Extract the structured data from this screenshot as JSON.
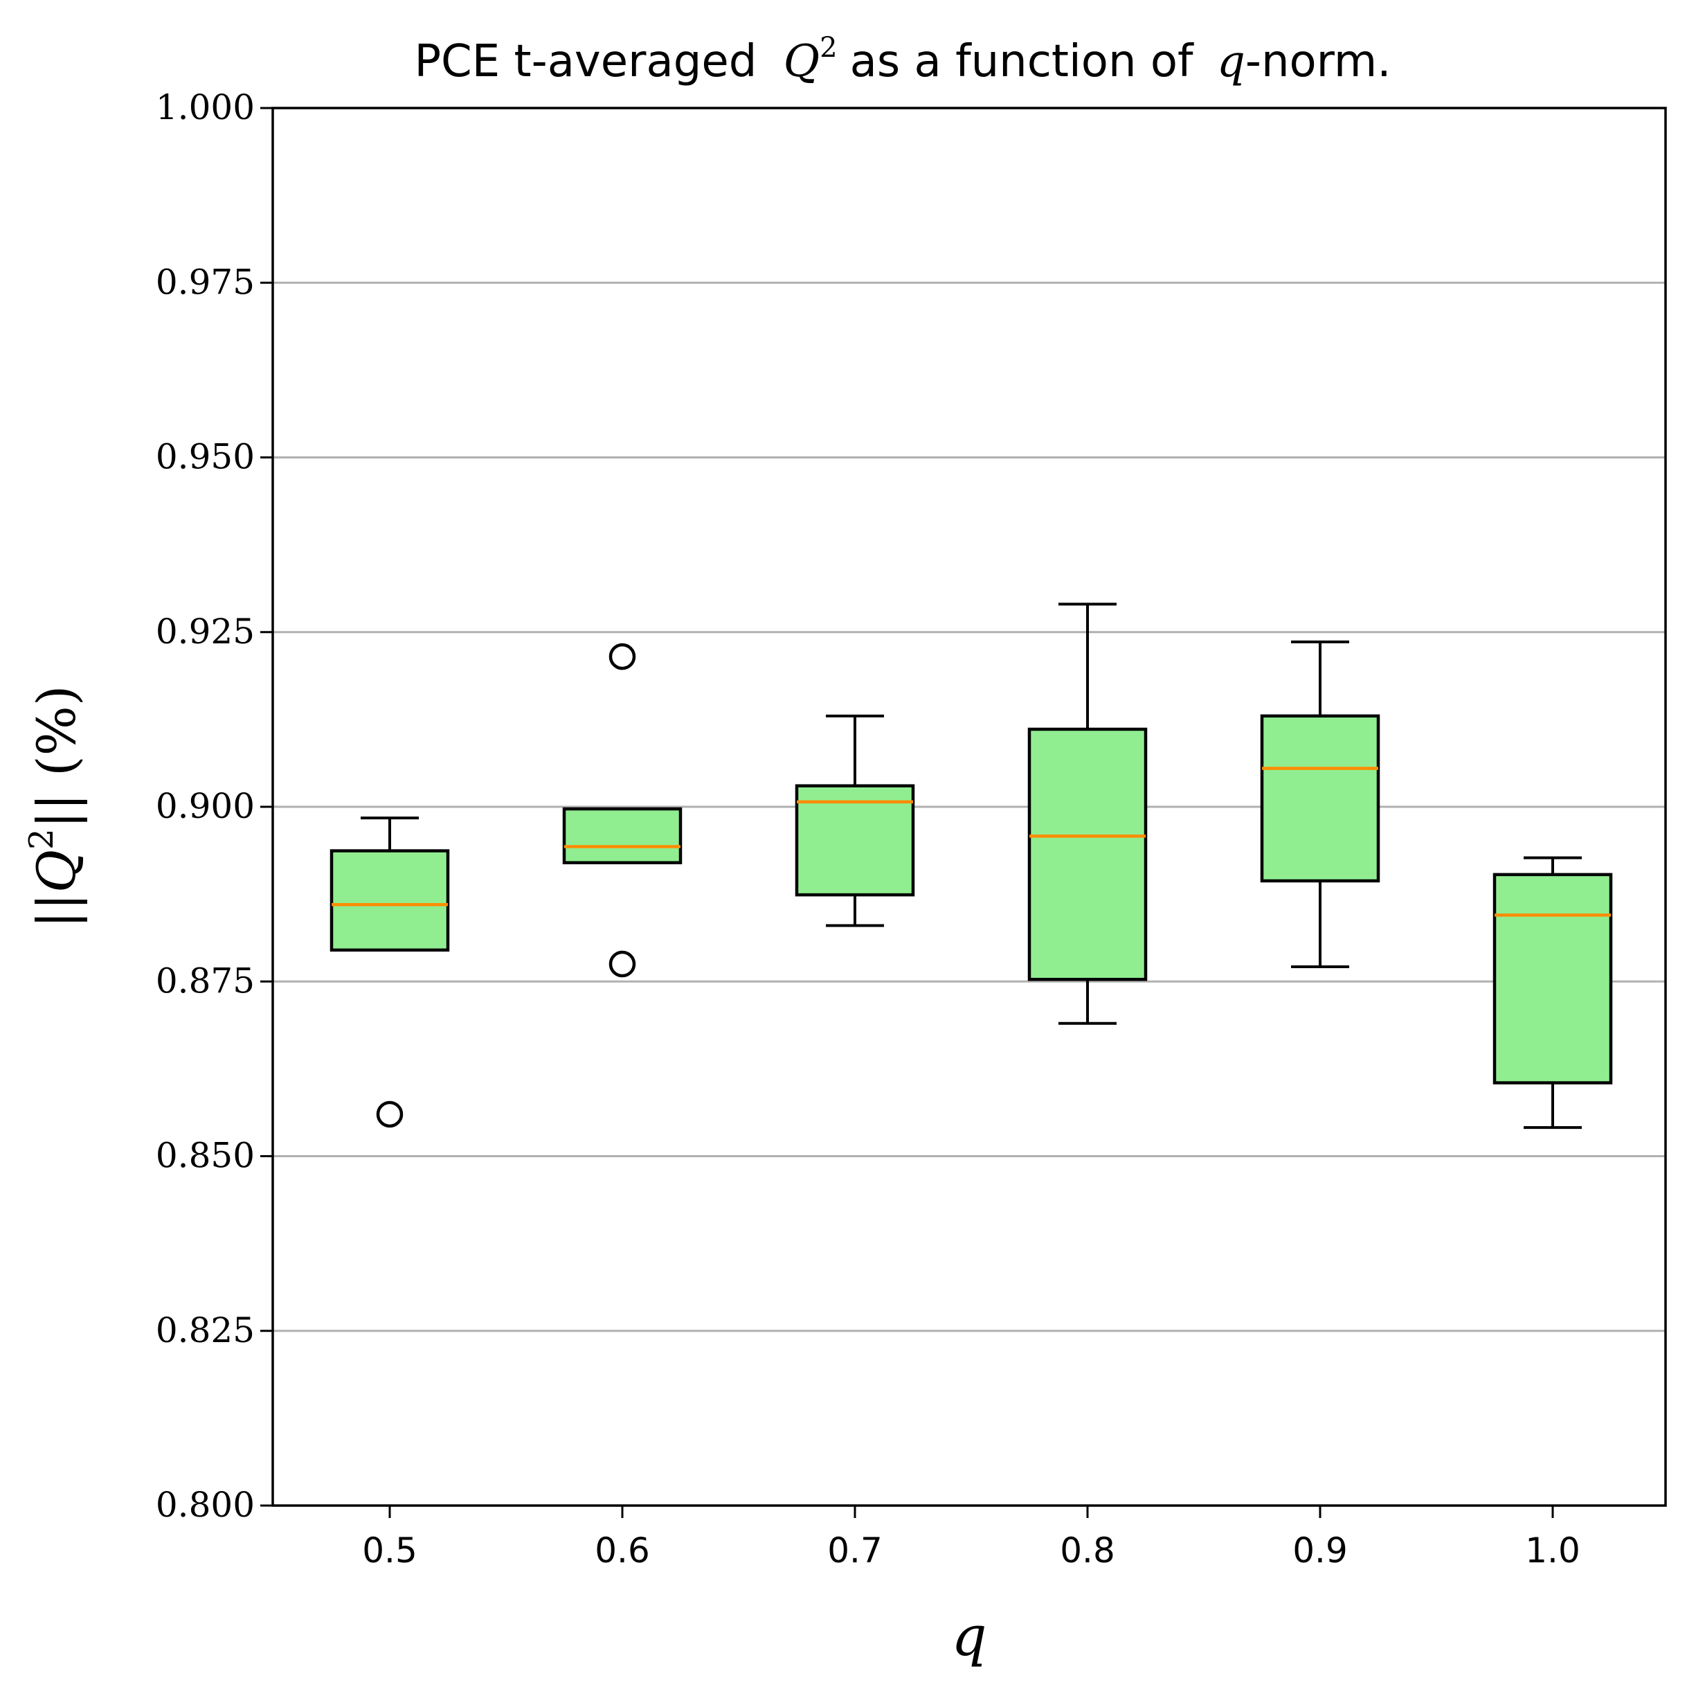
{
  "chart_data": {
    "type": "boxplot",
    "title_prefix": "PCE t-averaged",
    "title_math_base": "Q",
    "title_math_sup": "2",
    "title_middle": "as a function of",
    "title_math_q": "q",
    "title_suffix": "-norm.",
    "xlabel": "q",
    "ylabel_left": "||",
    "ylabel_base": "Q",
    "ylabel_sup": "2",
    "ylabel_right": "|| (%)",
    "ylim": [
      0.8,
      1.0
    ],
    "yticks": [
      "0.800",
      "0.825",
      "0.850",
      "0.875",
      "0.900",
      "0.925",
      "0.950",
      "0.975",
      "1.000"
    ],
    "grid": "horizontal",
    "colors": {
      "box_fill": "#90EE90",
      "median": "#FF8C00",
      "grid": "#b0b0b0",
      "edge": "#000000"
    },
    "boxes": [
      {
        "category": "0.5",
        "whisker_low": 0.8795,
        "q1": 0.8795,
        "median": 0.886,
        "q3": 0.8937,
        "whisker_high": 0.8984,
        "outliers": [
          0.856
        ]
      },
      {
        "category": "0.6",
        "whisker_low": 0.892,
        "q1": 0.892,
        "median": 0.8943,
        "q3": 0.8997,
        "whisker_high": 0.8997,
        "outliers": [
          0.9215,
          0.8775
        ]
      },
      {
        "category": "0.7",
        "whisker_low": 0.883,
        "q1": 0.8874,
        "median": 0.9007,
        "q3": 0.903,
        "whisker_high": 0.913,
        "outliers": []
      },
      {
        "category": "0.8",
        "whisker_low": 0.869,
        "q1": 0.8753,
        "median": 0.8958,
        "q3": 0.9111,
        "whisker_high": 0.929,
        "outliers": []
      },
      {
        "category": "0.9",
        "whisker_low": 0.8771,
        "q1": 0.8894,
        "median": 0.9055,
        "q3": 0.913,
        "whisker_high": 0.9236,
        "outliers": []
      },
      {
        "category": "1.0",
        "whisker_low": 0.8541,
        "q1": 0.8605,
        "median": 0.8845,
        "q3": 0.8903,
        "whisker_high": 0.8927,
        "outliers": []
      }
    ]
  }
}
